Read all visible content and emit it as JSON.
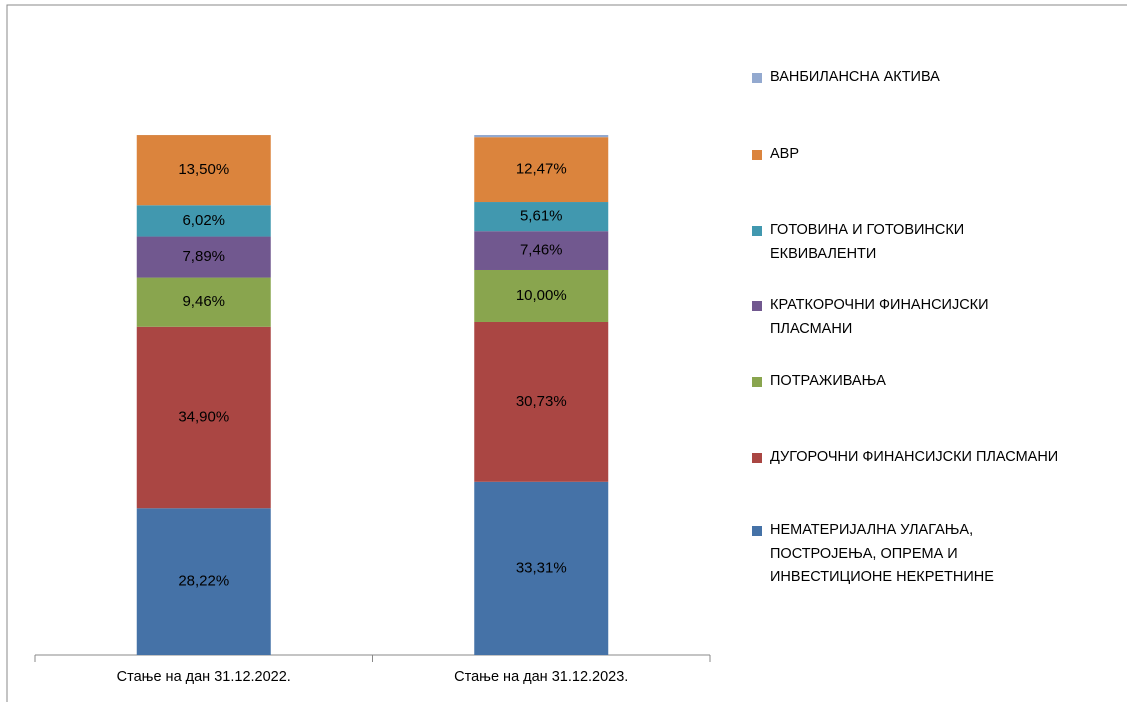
{
  "chart_data": {
    "type": "stacked_bar",
    "categories": [
      "Стање на дан 31.12.2022.",
      "Стање на дан 31.12.2023."
    ],
    "series": [
      {
        "name": "НЕМАТЕРИЈАЛНА УЛАГАЊА,\nПОСТРОЈЕЊА, ОПРЕМА  И\nИНВЕСТИЦИОНЕ НЕКРЕТНИНЕ",
        "color": "#4572a7",
        "values": [
          28.22,
          33.31
        ],
        "value_labels": [
          "28,22%",
          "33,31%"
        ]
      },
      {
        "name": "ДУГОРОЧНИ ФИНАНСИЈСКИ ПЛАСМАНИ",
        "color": "#aa4643",
        "values": [
          34.9,
          30.73
        ],
        "value_labels": [
          "34,90%",
          "30,73%"
        ]
      },
      {
        "name": "ПОТРАЖИВАЊА",
        "color": "#89a54e",
        "values": [
          9.46,
          10.0
        ],
        "value_labels": [
          "9,46%",
          "10,00%"
        ]
      },
      {
        "name": "КРАТКОРОЧНИ ФИНАНСИЈСКИ\nПЛАСМАНИ",
        "color": "#71588f",
        "values": [
          7.89,
          7.46
        ],
        "value_labels": [
          "7,89%",
          "7,46%"
        ]
      },
      {
        "name": "ГОТОВИНА И ГОТОВИНСКИ\nЕКВИВАЛЕНТИ",
        "color": "#4198af",
        "values": [
          6.02,
          5.61
        ],
        "value_labels": [
          "6,02%",
          "5,61%"
        ]
      },
      {
        "name": "АВР",
        "color": "#db843d",
        "values": [
          13.5,
          12.47
        ],
        "value_labels": [
          "13,50%",
          "12,47%"
        ]
      },
      {
        "name": "ВАНБИЛАНСНА АКТИВА",
        "color": "#93a9cf",
        "values": [
          0.01,
          0.42
        ]
      }
    ]
  }
}
